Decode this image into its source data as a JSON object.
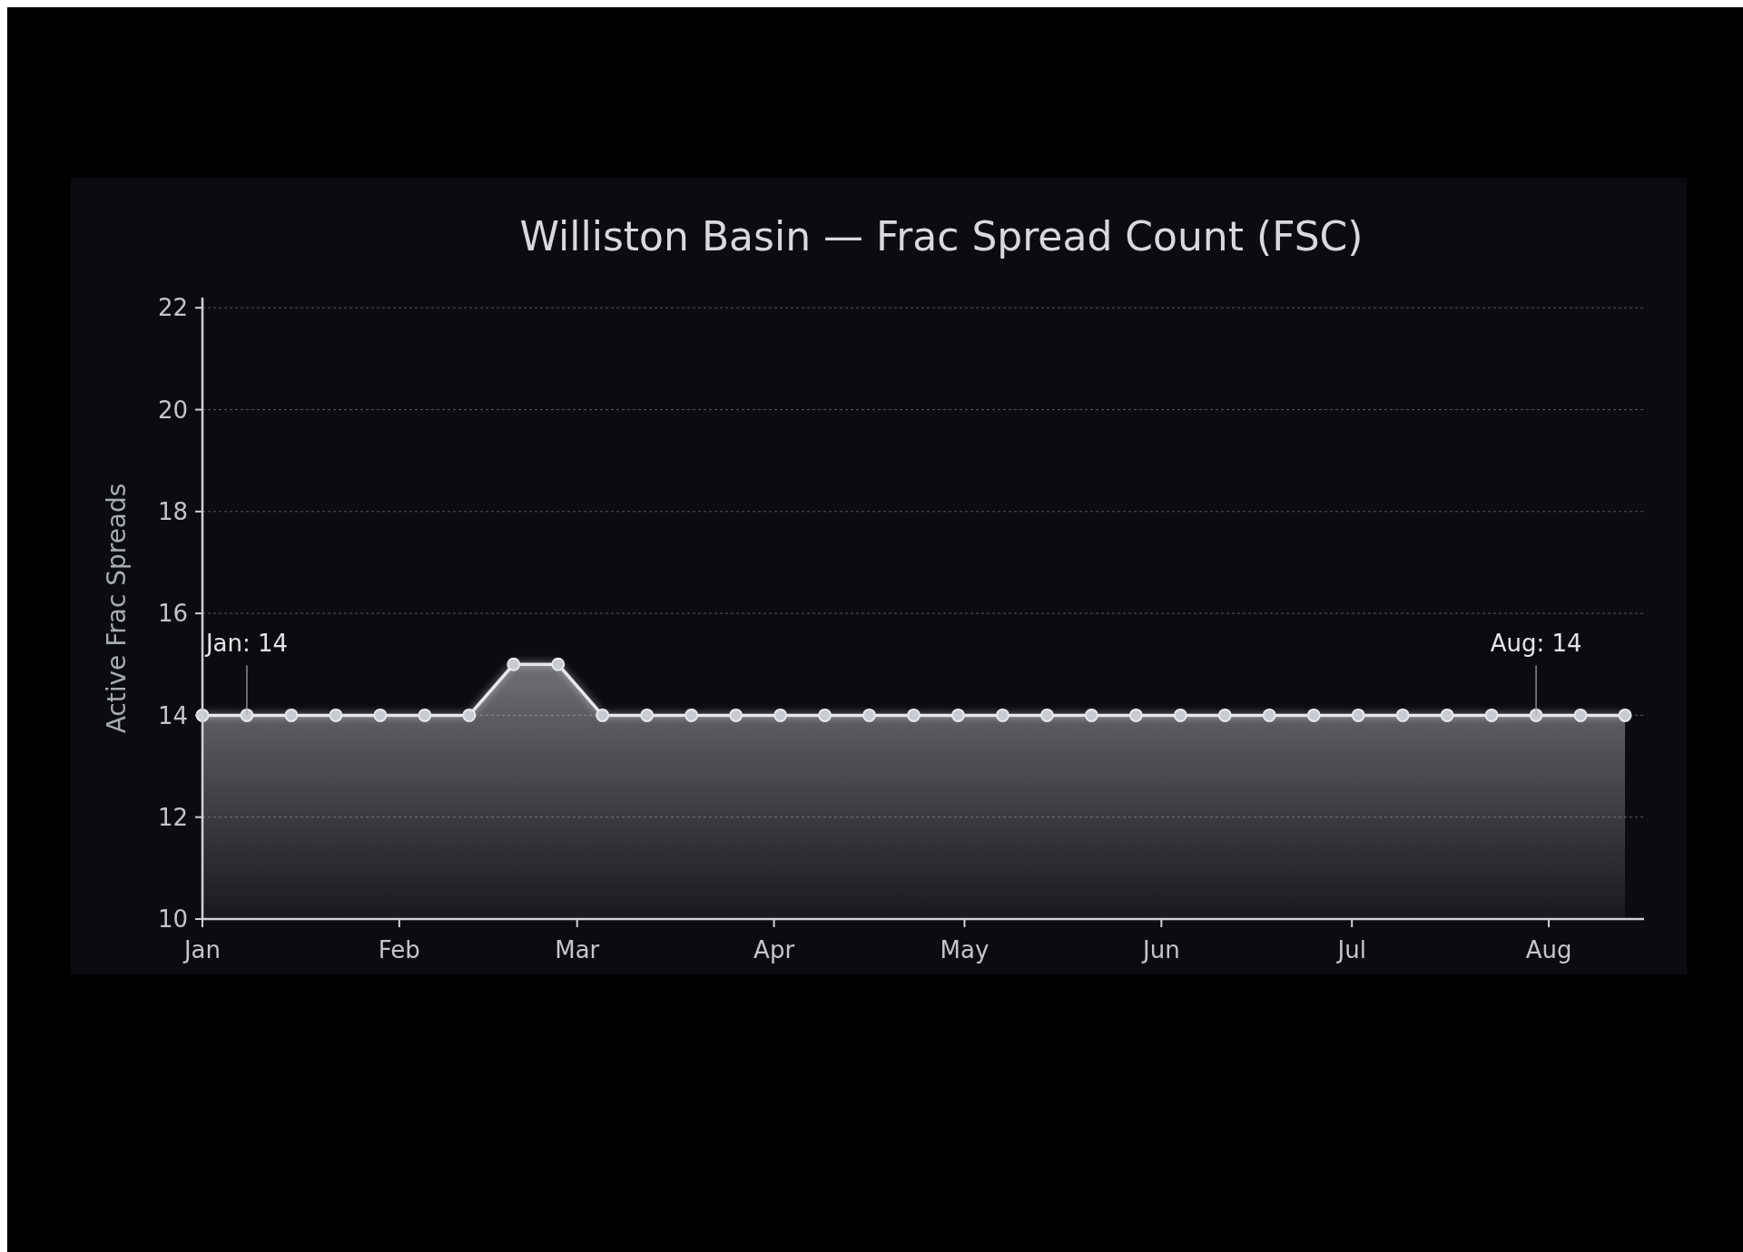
{
  "chart_data": {
    "type": "area",
    "title": "Williston Basin — Frac Spread Count (FSC)",
    "ylabel": "Active Frac Spreads",
    "x": [
      "--01-01",
      "--01-08",
      "--01-15",
      "--01-22",
      "--01-29",
      "--02-05",
      "--02-12",
      "--02-19",
      "--02-26",
      "--03-05",
      "--03-12",
      "--03-19",
      "--03-26",
      "--04-02",
      "--04-09",
      "--04-16",
      "--04-23",
      "--04-30",
      "--05-07",
      "--05-14",
      "--05-21",
      "--05-28",
      "--06-04",
      "--06-11",
      "--06-18",
      "--06-25",
      "--07-02",
      "--07-09",
      "--07-16",
      "--07-23",
      "--07-30",
      "--08-06",
      "--08-13"
    ],
    "series": [
      {
        "color": "#e8e8ec",
        "values": [
          14,
          14,
          14,
          14,
          14,
          14,
          14,
          15,
          15,
          14,
          14,
          14,
          14,
          14,
          14,
          14,
          14,
          14,
          14,
          14,
          14,
          14,
          14,
          14,
          14,
          14,
          14,
          14,
          14,
          14,
          14,
          14,
          14
        ]
      }
    ],
    "xlim": [
      "--01-01",
      "--08-16"
    ],
    "xticks": [
      {
        "value": "--01-01",
        "label": "Jan"
      },
      {
        "value": "--02-01",
        "label": "Feb"
      },
      {
        "value": "--03-01",
        "label": "Mar"
      },
      {
        "value": "--04-01",
        "label": "Apr"
      },
      {
        "value": "--05-01",
        "label": "May"
      },
      {
        "value": "--06-01",
        "label": "Jun"
      },
      {
        "value": "--07-01",
        "label": "Jul"
      },
      {
        "value": "--08-01",
        "label": "Aug"
      }
    ],
    "ylim": [
      10,
      22.2
    ],
    "yticks": [
      10,
      12,
      14,
      16,
      18,
      20,
      22
    ],
    "grid": "y",
    "marker": "circle",
    "line_style": "solid",
    "annotations": [
      {
        "text": "Jan: 14",
        "x": "--01-08",
        "y": 14
      },
      {
        "text": "Aug: 14",
        "x": "--07-30",
        "y": 14
      }
    ]
  }
}
